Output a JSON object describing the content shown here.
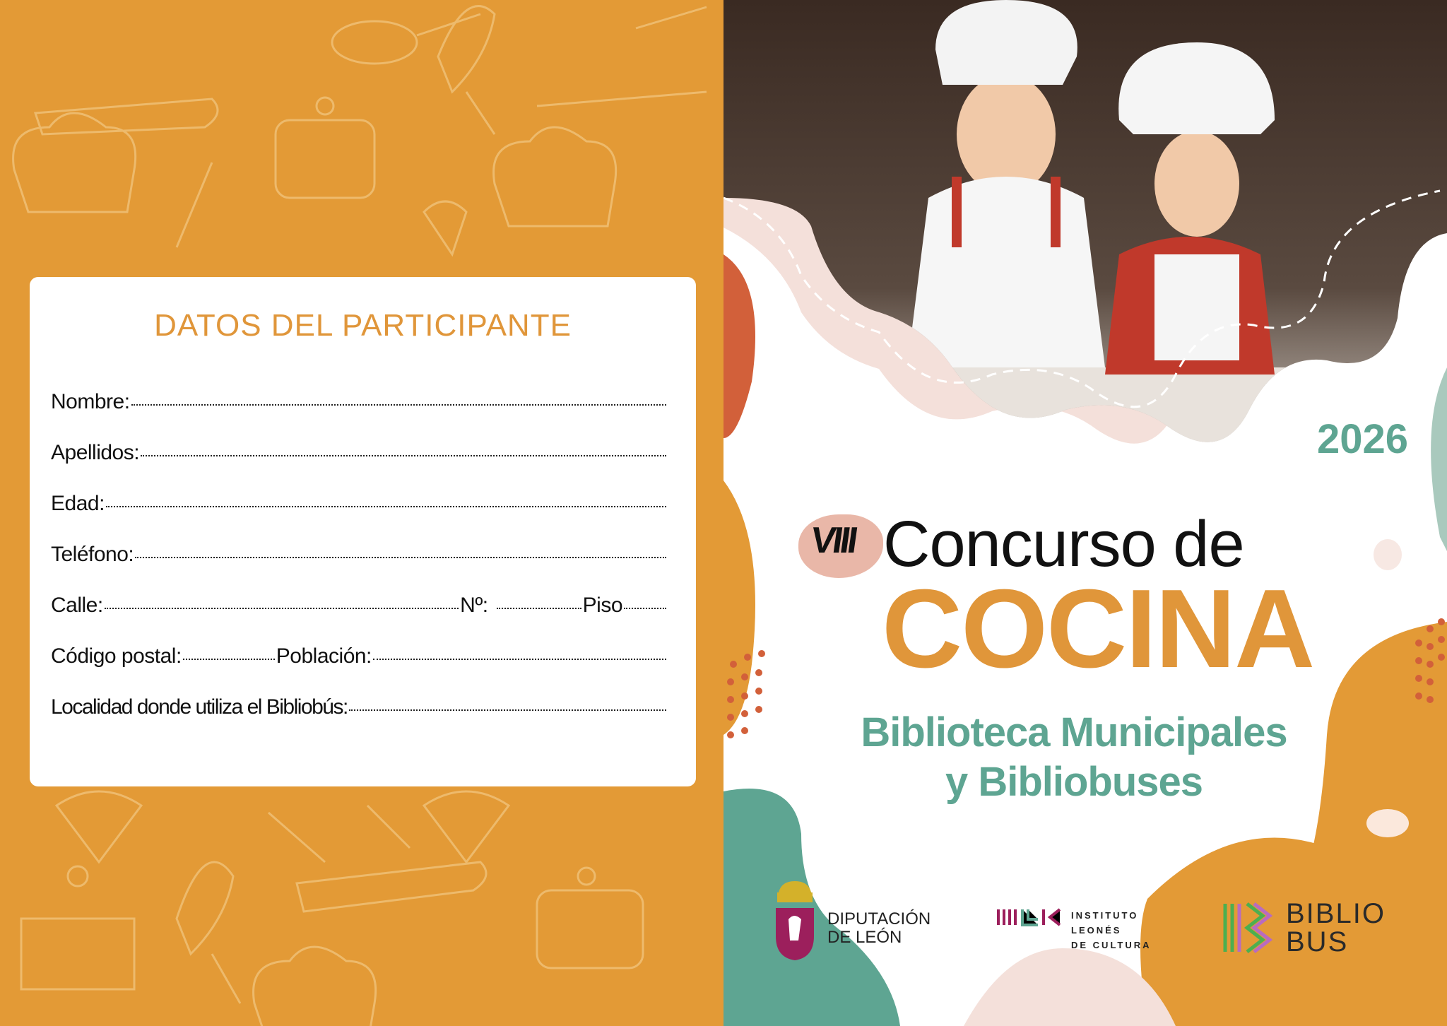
{
  "form": {
    "title": "DATOS DEL PARTICIPANTE",
    "fields": [
      {
        "label": "Nombre:"
      },
      {
        "label": "Apellidos:"
      },
      {
        "label": "Edad:"
      },
      {
        "label": "Teléfono:"
      },
      {
        "label": "Calle:",
        "extra": [
          "Nº:",
          "Piso"
        ]
      },
      {
        "label": "Código postal:",
        "extra": [
          "Población:"
        ]
      },
      {
        "label": "Localidad donde utiliza el Bibliobús:"
      }
    ]
  },
  "cover": {
    "year": "2026",
    "edition": "VIII",
    "title_line1": "Concurso de",
    "title_line2": "COCINA",
    "subtitle_line1": "Biblioteca Municipales",
    "subtitle_line2": "y Bibliobuses"
  },
  "logos": {
    "diputacion": [
      "DIPUTACIÓN",
      "DE LEÓN"
    ],
    "ilc": [
      "INSTITUTO",
      "LEONÉS",
      "DE CULTURA"
    ],
    "bibliobus": [
      "BIBLIO",
      "BUS"
    ]
  },
  "colors": {
    "orange": "#e39a36",
    "teal": "#5ea592",
    "coral": "#d2603a",
    "pink": "#e9b7a8",
    "magenta": "#9c1f5c"
  }
}
